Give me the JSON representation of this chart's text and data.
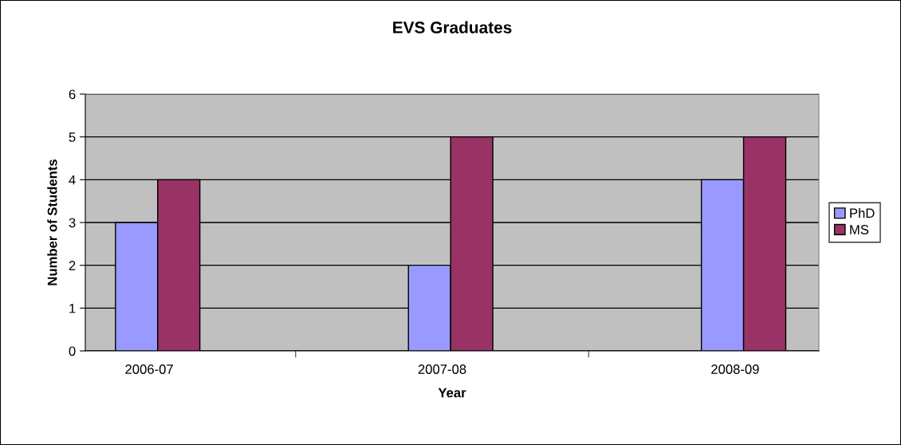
{
  "chart_data": {
    "type": "bar",
    "title": "EVS Graduates",
    "xlabel": "Year",
    "ylabel": "Number of Students",
    "categories": [
      "2006-07",
      "2007-08",
      "2008-09"
    ],
    "series": [
      {
        "name": "PhD",
        "color": "#9999ff",
        "values": [
          3,
          2,
          4
        ]
      },
      {
        "name": "MS",
        "color": "#993366",
        "values": [
          4,
          5,
          5
        ]
      }
    ],
    "ylim": [
      0,
      6
    ],
    "yticks": [
      0,
      1,
      2,
      3,
      4,
      5,
      6
    ],
    "grid": "y",
    "legend": "right"
  }
}
